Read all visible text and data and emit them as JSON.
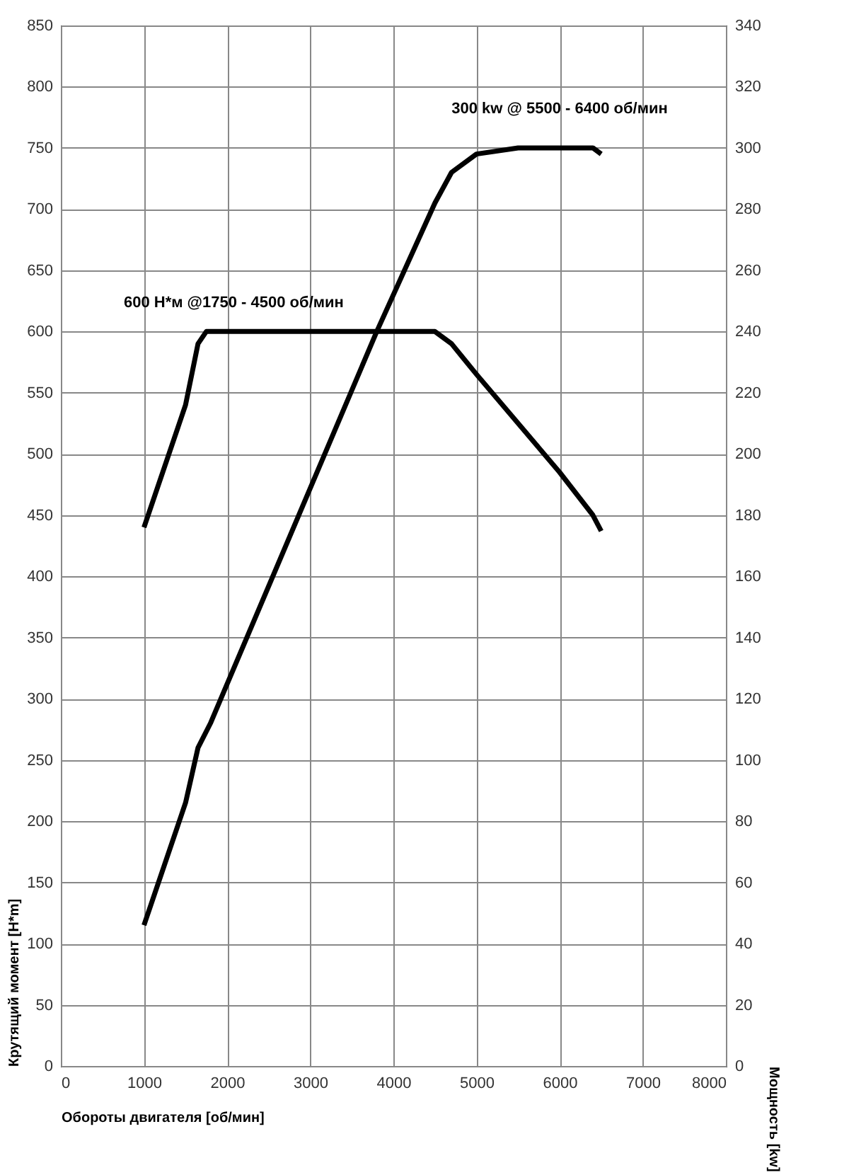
{
  "chart_data": {
    "type": "line",
    "xlabel": "Обороты двигателя [об/мин]",
    "ylabel": "Крутящий момент [Н*m]",
    "y2label": "Мощность [kw]",
    "xlim": [
      0,
      8000
    ],
    "xticks": [
      0,
      1000,
      2000,
      3000,
      4000,
      5000,
      6000,
      7000,
      8000
    ],
    "ylim": [
      0,
      850
    ],
    "yticks": [
      0,
      50,
      100,
      150,
      200,
      250,
      300,
      350,
      400,
      450,
      500,
      550,
      600,
      650,
      700,
      750,
      800,
      850
    ],
    "y2lim": [
      0,
      340
    ],
    "y2ticks": [
      0,
      20,
      40,
      60,
      80,
      100,
      120,
      140,
      160,
      180,
      200,
      220,
      240,
      260,
      280,
      300,
      320,
      340
    ],
    "grid": true,
    "series": [
      {
        "color": "#000000",
        "x": [
          1000,
          1500,
          1650,
          1750,
          4500,
          4700,
          5000,
          5500,
          6000,
          6400,
          6500
        ],
        "values": [
          440,
          540,
          590,
          600,
          600,
          590,
          565,
          525,
          485,
          450,
          437
        ]
      },
      {
        "color": "#000000",
        "axis": "y2",
        "x": [
          1000,
          1500,
          1650,
          1800,
          3800,
          4500,
          4700,
          5000,
          5500,
          6400,
          6500
        ],
        "values": [
          46,
          86,
          104,
          112,
          240,
          282,
          292,
          298,
          300,
          300,
          298
        ]
      }
    ],
    "annotations": [
      "600 Н*м @1750 - 4500 об/мин",
      "300 kw @ 5500 - 6400 об/мин"
    ]
  }
}
